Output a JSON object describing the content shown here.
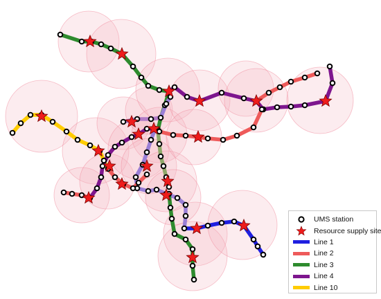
{
  "legend": {
    "station_label": "UMS station",
    "site_label": "Resource supply site",
    "lines": [
      {
        "label": "Line 1",
        "color": "#1f1fe0"
      },
      {
        "label": "Line 2",
        "color": "#ee5a5a"
      },
      {
        "label": "Line 3",
        "color": "#2e8b2e"
      },
      {
        "label": "Line 4",
        "color": "#7e168e"
      },
      {
        "label": "Line 10",
        "color": "#ffcc00"
      }
    ]
  },
  "colors": {
    "coverage_fill": "#f5b5c0",
    "star_fill": "#ee1c1c",
    "station_fill": "#ffffff",
    "station_stroke": "#000000"
  }
}
